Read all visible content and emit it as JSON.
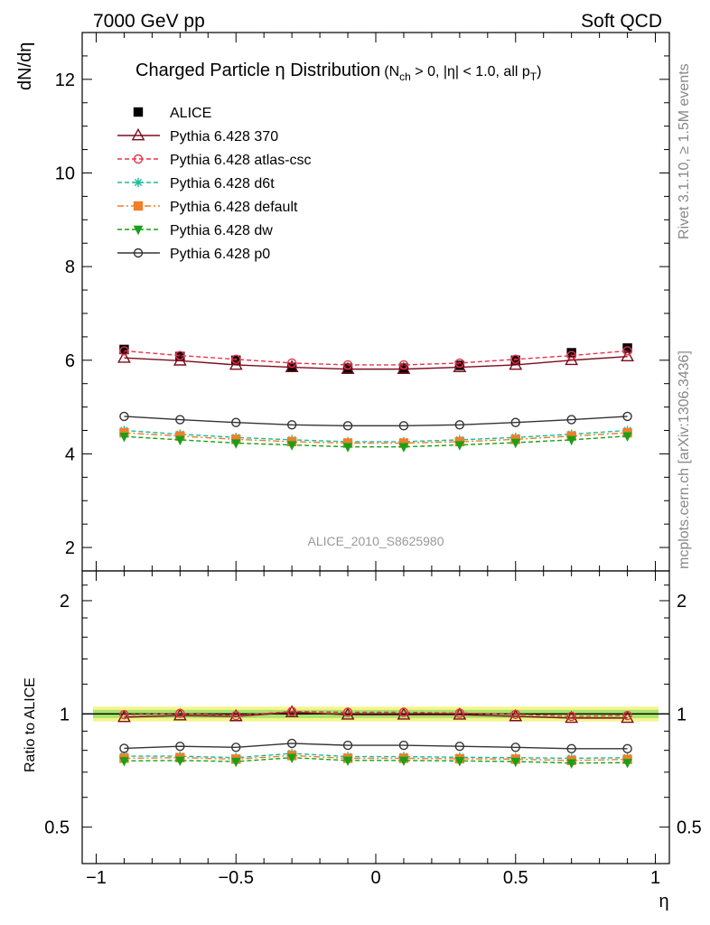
{
  "header": {
    "left": "7000 GeV pp",
    "right": "Soft QCD",
    "side_top": "Rivet 3.1.10, ≥ 1.5M events",
    "side_bottom": "mcplots.cern.ch [arXiv:1306.3436]"
  },
  "chart_data": [
    {
      "type": "line",
      "title": "Charged Particle η Distribution",
      "title_cut": "(N",
      "title_cut_sub": "ch",
      "title_cut_rest": " > 0, |η| < 1.0, all p",
      "title_cut_sub2": "T",
      "title_cut_end": ")",
      "ylabel": "dN/dη",
      "watermark": "ALICE_2010_S8625980",
      "xlim": [
        -1.05,
        1.05
      ],
      "ylim": [
        1.5,
        13.0
      ],
      "x": [
        -0.9,
        -0.7,
        -0.5,
        -0.3,
        -0.1,
        0.1,
        0.3,
        0.5,
        0.7,
        0.9
      ],
      "yticks": [
        2,
        4,
        6,
        8,
        10,
        12
      ],
      "legend_position": "top-left",
      "series": [
        {
          "name": "ALICE",
          "marker": "square-filled",
          "color": "#000000",
          "line": "none",
          "values": [
            6.23,
            6.08,
            6.0,
            5.85,
            5.83,
            5.83,
            5.89,
            6.0,
            6.16,
            6.26
          ]
        },
        {
          "name": "Pythia 6.428 370",
          "marker": "triangle-open",
          "color": "#7a0d1c",
          "line": "solid",
          "values": [
            6.05,
            5.99,
            5.9,
            5.85,
            5.81,
            5.81,
            5.85,
            5.9,
            6.0,
            6.08
          ]
        },
        {
          "name": "Pythia 6.428 atlas-csc",
          "marker": "circle-open",
          "color": "#e8334c",
          "line": "dashed",
          "values": [
            6.2,
            6.1,
            6.02,
            5.94,
            5.9,
            5.9,
            5.94,
            6.02,
            6.1,
            6.2
          ]
        },
        {
          "name": "Pythia 6.428 d6t",
          "marker": "star",
          "color": "#1abc9c",
          "line": "dashed",
          "values": [
            4.5,
            4.42,
            4.35,
            4.3,
            4.26,
            4.26,
            4.3,
            4.35,
            4.42,
            4.5
          ]
        },
        {
          "name": "Pythia 6.428 default",
          "marker": "square-filled",
          "color": "#f07f2a",
          "line": "dashdot",
          "values": [
            4.45,
            4.38,
            4.31,
            4.26,
            4.23,
            4.23,
            4.26,
            4.31,
            4.38,
            4.45
          ]
        },
        {
          "name": "Pythia 6.428 dw",
          "marker": "triangle-down-filled",
          "color": "#16a116",
          "line": "dashed",
          "values": [
            4.37,
            4.3,
            4.23,
            4.19,
            4.15,
            4.15,
            4.19,
            4.24,
            4.3,
            4.38
          ]
        },
        {
          "name": "Pythia 6.428 p0",
          "marker": "circle-open",
          "color": "#333333",
          "line": "solid",
          "values": [
            4.8,
            4.73,
            4.67,
            4.62,
            4.6,
            4.6,
            4.62,
            4.67,
            4.73,
            4.8
          ]
        }
      ]
    },
    {
      "type": "line",
      "ylabel": "Ratio to ALICE",
      "xlabel": "η",
      "log_y": true,
      "xlim": [
        -1.05,
        1.05
      ],
      "ylim": [
        0.4,
        2.4
      ],
      "xticks": [
        -1,
        -0.5,
        0,
        0.5,
        1
      ],
      "xtick_labels": [
        "−1",
        "−0.5",
        "0",
        "0.5",
        "1"
      ],
      "yticks": [
        0.5,
        1,
        2
      ],
      "ytick_labels": [
        "0.5",
        "1",
        "2"
      ],
      "reference_band": {
        "inner": [
          0.975,
          1.025
        ],
        "outer": [
          0.955,
          1.045
        ],
        "inner_color": "#a6e36d",
        "outer_color": "#f5f58a"
      },
      "x": [
        -0.9,
        -0.7,
        -0.5,
        -0.3,
        -0.1,
        0.1,
        0.3,
        0.5,
        0.7,
        0.9
      ],
      "series": [
        {
          "name": "Pythia 6.428 370",
          "values": [
            0.98,
            0.99,
            0.985,
            1.01,
            0.995,
            0.995,
            0.995,
            0.985,
            0.975,
            0.975
          ]
        },
        {
          "name": "Pythia 6.428 atlas-csc",
          "values": [
            0.995,
            1.003,
            0.99,
            1.015,
            1.01,
            1.01,
            1.005,
            0.997,
            0.985,
            0.99
          ]
        },
        {
          "name": "Pythia 6.428 d6t",
          "values": [
            0.772,
            0.772,
            0.765,
            0.785,
            0.77,
            0.77,
            0.767,
            0.765,
            0.762,
            0.765
          ]
        },
        {
          "name": "Pythia 6.428 default",
          "values": [
            0.762,
            0.765,
            0.758,
            0.775,
            0.762,
            0.762,
            0.76,
            0.758,
            0.752,
            0.757
          ]
        },
        {
          "name": "Pythia 6.428 dw",
          "values": [
            0.75,
            0.752,
            0.747,
            0.765,
            0.752,
            0.752,
            0.75,
            0.747,
            0.74,
            0.742
          ]
        },
        {
          "name": "Pythia 6.428 p0",
          "values": [
            0.81,
            0.82,
            0.815,
            0.835,
            0.825,
            0.825,
            0.82,
            0.815,
            0.808,
            0.808
          ]
        }
      ]
    }
  ]
}
